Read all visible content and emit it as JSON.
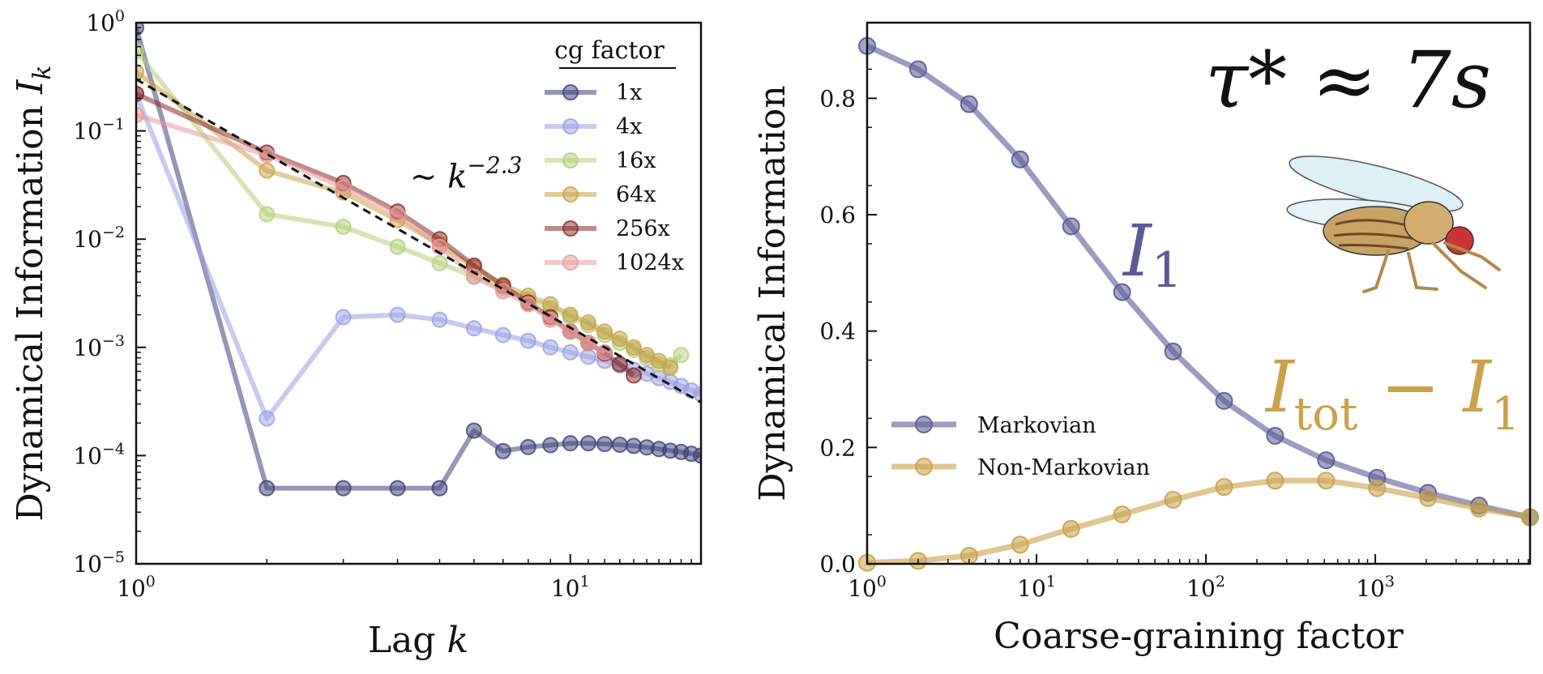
{
  "chart_data": [
    {
      "type": "line",
      "title": "",
      "xlabel": "Lag k",
      "ylabel": "Dynamical Information I_k",
      "xscale": "log",
      "yscale": "log",
      "xlim": [
        1,
        20
      ],
      "ylim": [
        1e-05,
        1
      ],
      "x_ticks": [
        {
          "value": 1,
          "base": "10",
          "exp": "0"
        },
        {
          "value": 10,
          "base": "10",
          "exp": "1"
        }
      ],
      "y_ticks": [
        {
          "value": 1,
          "base": "10",
          "exp": "0"
        },
        {
          "value": 0.1,
          "base": "10",
          "exp": "−1"
        },
        {
          "value": 0.01,
          "base": "10",
          "exp": "−2"
        },
        {
          "value": 0.001,
          "base": "10",
          "exp": "−3"
        },
        {
          "value": 0.0001,
          "base": "10",
          "exp": "−4"
        },
        {
          "value": 1e-05,
          "base": "10",
          "exp": "−5"
        }
      ],
      "legend_title": "cg factor",
      "legend_position": "top-right",
      "annotation": {
        "text_prefix": "∼ k",
        "exponent": "−2.3",
        "x": 4.2,
        "y": 0.03
      },
      "fit_line": {
        "label": "k^-2.3",
        "exponent": -2.3,
        "x": [
          1,
          20
        ],
        "y": [
          0.3,
          0.00031
        ],
        "color": "#111111"
      },
      "series": [
        {
          "name": "1x",
          "color": "#3f3f7a",
          "x": [
            1,
            2,
            3,
            4,
            5,
            6,
            7,
            8,
            9,
            10,
            11,
            12,
            13,
            14,
            15,
            16,
            17,
            18,
            19,
            20
          ],
          "y": [
            0.9,
            5e-05,
            5e-05,
            5e-05,
            5e-05,
            0.00017,
            0.00011,
            0.00012,
            0.000125,
            0.00013,
            0.00013,
            0.000128,
            0.000126,
            0.000123,
            0.000119,
            0.000115,
            0.000111,
            0.000108,
            0.000104,
            0.0001
          ]
        },
        {
          "name": "4x",
          "color": "#9aa0e0",
          "x": [
            1,
            2,
            3,
            4,
            5,
            6,
            7,
            8,
            9,
            10,
            11,
            12,
            13,
            14,
            15,
            16,
            17,
            18,
            19,
            20
          ],
          "y": [
            0.22,
            0.00022,
            0.0019,
            0.002,
            0.0018,
            0.0015,
            0.0013,
            0.00115,
            0.001,
            0.0009,
            0.00082,
            0.00075,
            0.00068,
            0.00062,
            0.00057,
            0.00052,
            0.00048,
            0.00044,
            0.0004,
            0.00037
          ]
        },
        {
          "name": "16x",
          "color": "#b5cf7a",
          "x": [
            1,
            2,
            3,
            4,
            5,
            6,
            7,
            8,
            9,
            10,
            11,
            12,
            13,
            14,
            15,
            16,
            17,
            18
          ],
          "y": [
            0.55,
            0.017,
            0.013,
            0.0085,
            0.006,
            0.0045,
            0.0035,
            0.0028,
            0.0023,
            0.0019,
            0.0016,
            0.0013,
            0.0011,
            0.00095,
            0.0008,
            0.0007,
            0.00068,
            0.00085
          ]
        },
        {
          "name": "64x",
          "color": "#c9a24a",
          "x": [
            1,
            2,
            3,
            4,
            5,
            6,
            7,
            8,
            9,
            10,
            11,
            12,
            13,
            14,
            15,
            16,
            17
          ],
          "y": [
            0.35,
            0.043,
            0.027,
            0.015,
            0.009,
            0.0055,
            0.0038,
            0.003,
            0.0025,
            0.002,
            0.0017,
            0.0014,
            0.0012,
            0.001,
            0.00085,
            0.00075,
            0.00065
          ]
        },
        {
          "name": "256x",
          "color": "#8b2a2a",
          "x": [
            1,
            2,
            3,
            4,
            5,
            6,
            7,
            8,
            9,
            10,
            11,
            12,
            13,
            14
          ],
          "y": [
            0.22,
            0.063,
            0.033,
            0.018,
            0.01,
            0.0057,
            0.0037,
            0.0026,
            0.0019,
            0.0014,
            0.0011,
            0.00088,
            0.0007,
            0.00055
          ]
        },
        {
          "name": "1024x",
          "color": "#e89a9a",
          "x": [
            1,
            2,
            3,
            4,
            5,
            6,
            7,
            8,
            9,
            10,
            11,
            12
          ],
          "y": [
            0.14,
            0.06,
            0.03,
            0.017,
            0.0085,
            0.0045,
            0.0033,
            0.0025,
            0.0018,
            0.0014,
            0.0011,
            0.0009
          ]
        }
      ]
    },
    {
      "type": "line",
      "title": "",
      "xlabel": "Coarse-graining factor",
      "ylabel": "Dynamical Information",
      "xscale": "log",
      "yscale": "linear",
      "xlim": [
        1,
        8192
      ],
      "ylim": [
        0,
        0.93
      ],
      "x_ticks": [
        {
          "value": 1,
          "base": "10",
          "exp": "0"
        },
        {
          "value": 10,
          "base": "10",
          "exp": "1"
        },
        {
          "value": 100,
          "base": "10",
          "exp": "2"
        },
        {
          "value": 1000,
          "base": "10",
          "exp": "3"
        }
      ],
      "y_ticks": [
        {
          "value": 0,
          "label": "0.0"
        },
        {
          "value": 0.2,
          "label": "0.2"
        },
        {
          "value": 0.4,
          "label": "0.4"
        },
        {
          "value": 0.6,
          "label": "0.6"
        },
        {
          "value": 0.8,
          "label": "0.8"
        }
      ],
      "legend_position": "lower-left",
      "annotations": {
        "tau": "τ* ≈ 7s",
        "markov_symbol": "I",
        "markov_sub": "1",
        "nonmarkov_sym1": "I",
        "nonmarkov_sub1": "tot",
        "nonmarkov_minus": " − ",
        "nonmarkov_sym2": "I",
        "nonmarkov_sub2": "1"
      },
      "series": [
        {
          "name": "Markovian",
          "color": "#5a5a96",
          "x": [
            1,
            2,
            4,
            8,
            16,
            32,
            64,
            128,
            256,
            512,
            1024,
            2048,
            4096,
            8192
          ],
          "y": [
            0.89,
            0.85,
            0.79,
            0.695,
            0.58,
            0.467,
            0.365,
            0.28,
            0.22,
            0.178,
            0.148,
            0.122,
            0.1,
            0.08
          ]
        },
        {
          "name": "Non-Markovian",
          "color": "#c9a24a",
          "x": [
            1,
            2,
            4,
            8,
            16,
            32,
            64,
            128,
            256,
            512,
            1024,
            2048,
            4096,
            8192
          ],
          "y": [
            0.002,
            0.005,
            0.014,
            0.033,
            0.06,
            0.085,
            0.11,
            0.132,
            0.143,
            0.143,
            0.13,
            0.113,
            0.095,
            0.08
          ]
        }
      ]
    }
  ]
}
